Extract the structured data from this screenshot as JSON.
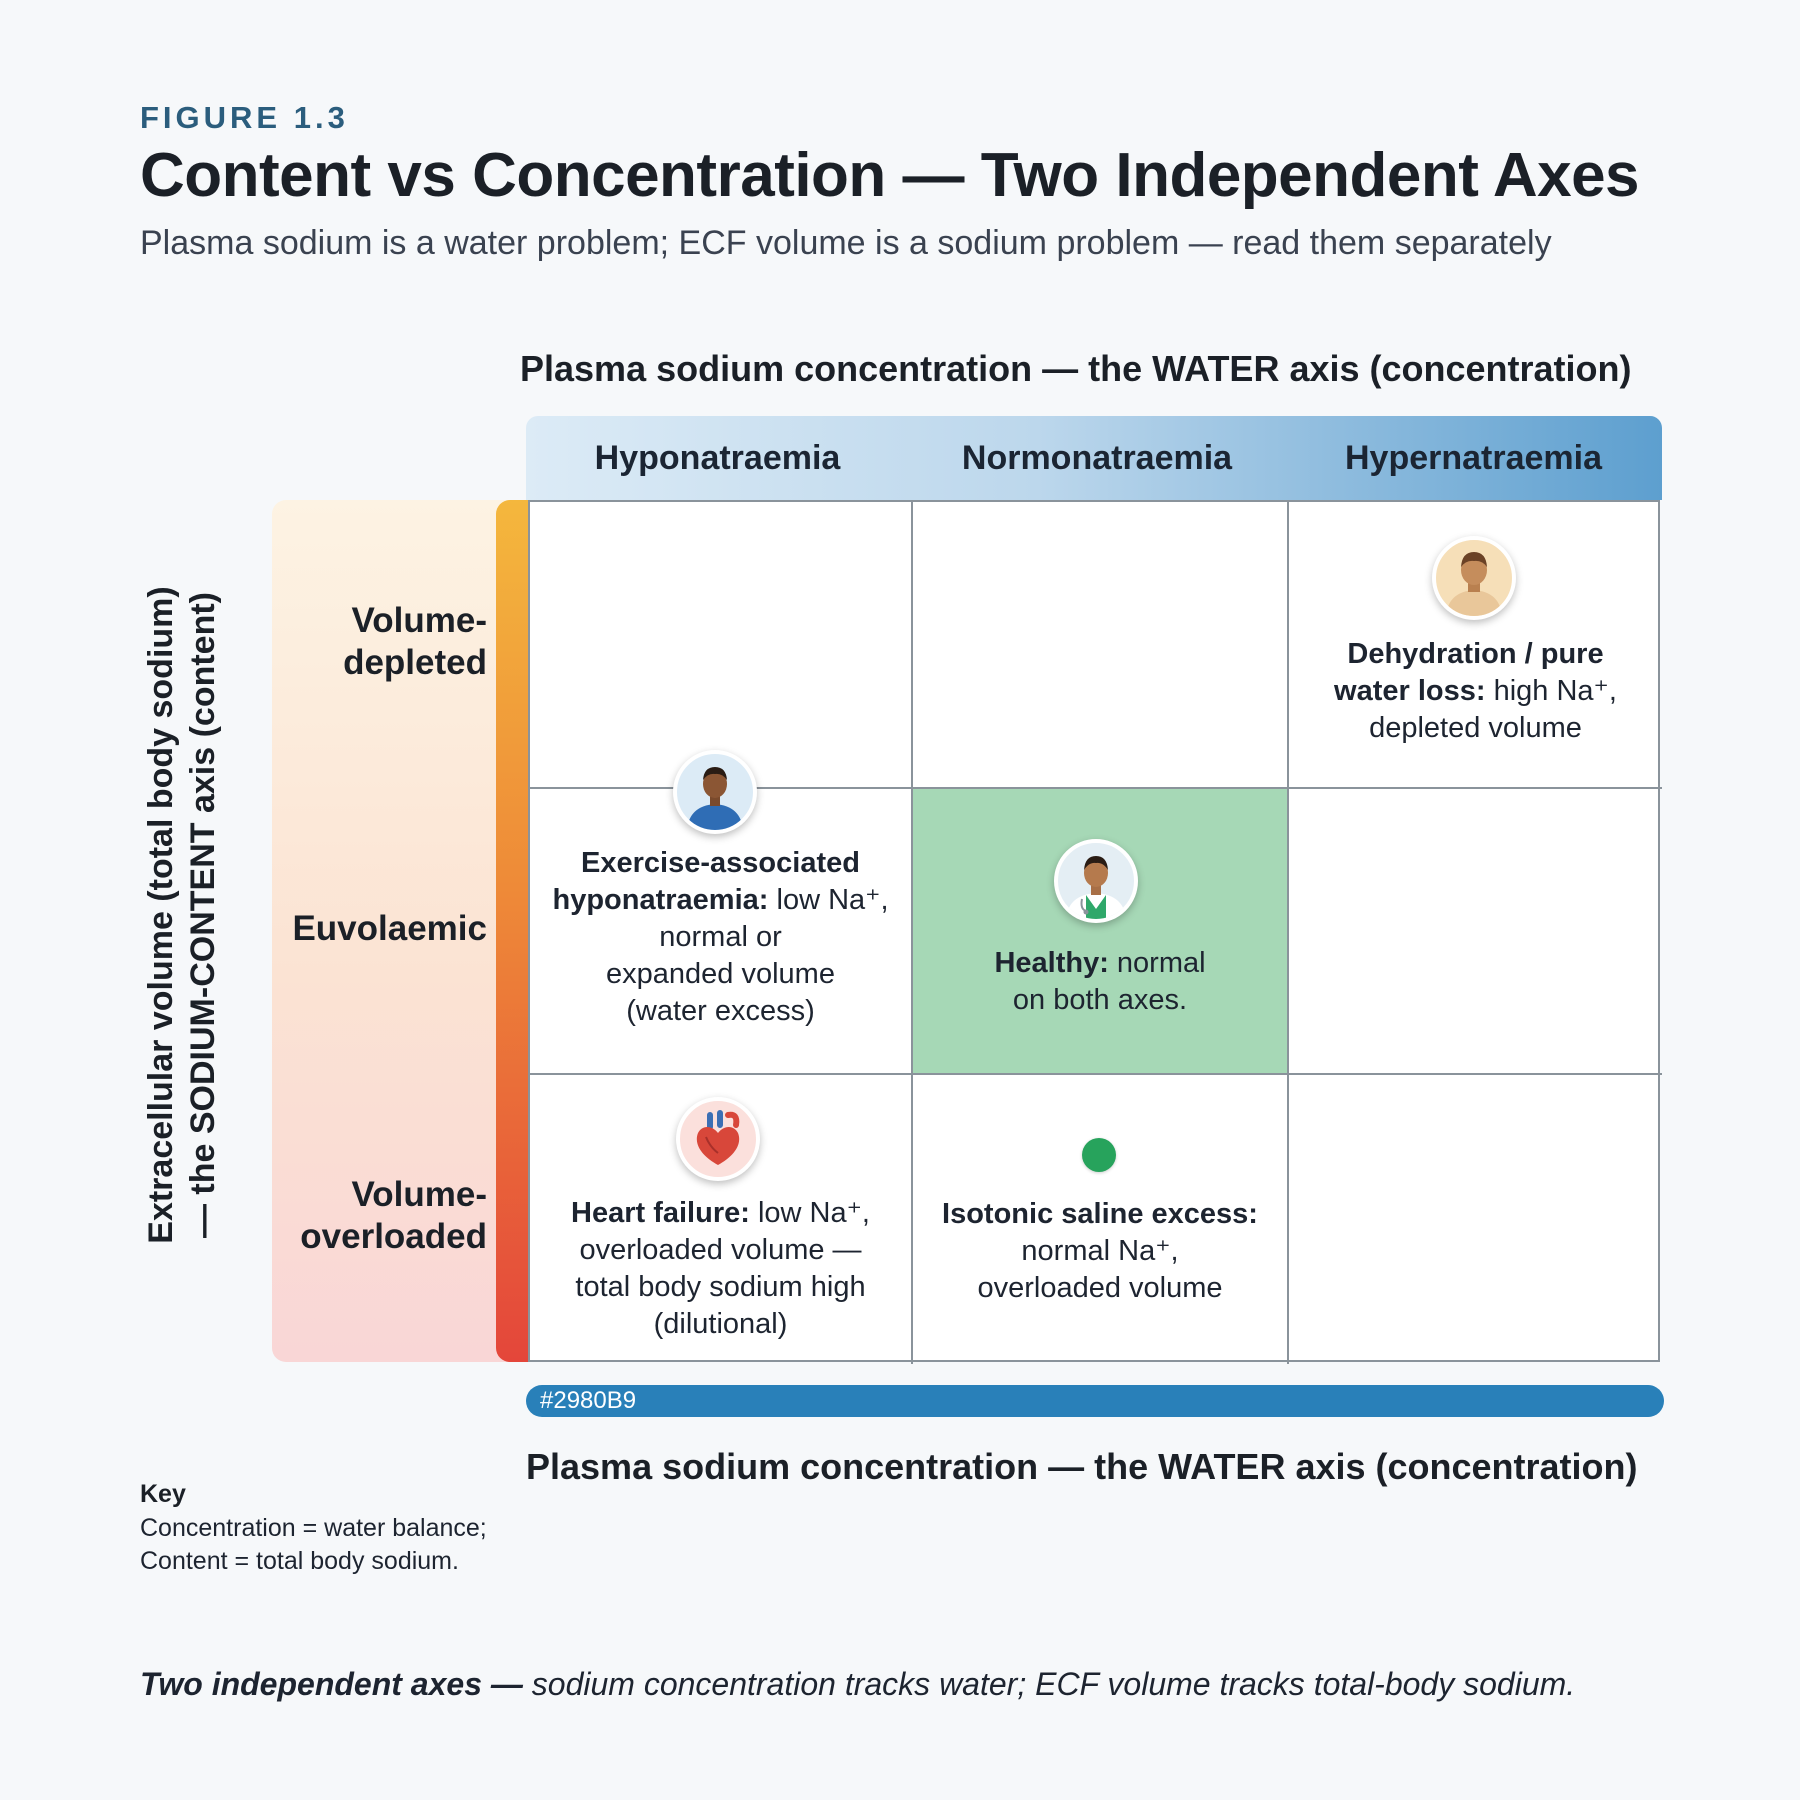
{
  "figure_label": "FIGURE 1.3",
  "title": "Content vs Concentration — Two Independent Axes",
  "subtitle": "Plasma sodium is a water problem; ECF volume is a sodium problem — read them separately",
  "x_axis": {
    "title_top": "Plasma sodium concentration — the WATER axis (concentration)",
    "title_bottom": "Plasma sodium concentration — the WATER axis (concentration)",
    "columns": [
      "Hyponatraemia",
      "Normonatraemia",
      "Hypernatraemia"
    ],
    "bar_color": "#2980B9",
    "bar_label": "#2980B9"
  },
  "y_axis": {
    "title_line1": "Extracellular volume (total body sodium)",
    "title_line2": "— the SODIUM-CONTENT axis (content)",
    "rows": [
      {
        "line1": "Volume-",
        "line2": "depleted"
      },
      {
        "line1": "Euvolaemic",
        "line2": ""
      },
      {
        "line1": "Volume-",
        "line2": "overloaded"
      }
    ],
    "stripe_colors": [
      "#f4b73d",
      "#ee8a38",
      "#e4463a"
    ]
  },
  "cells": {
    "dehydration": {
      "icon": "person-avatar-icon",
      "bold1": "Dehydration / pure",
      "bold2": "water loss:",
      "text2": " high Na⁺,",
      "line3": "depleted volume"
    },
    "exercise": {
      "icon": "runner-avatar-icon",
      "bold1": "Exercise-associated",
      "bold2": "hyponatraemia:",
      "text2": " low Na⁺,",
      "line3": "normal or",
      "line4": "expanded volume",
      "line5": "(water excess)"
    },
    "healthy": {
      "icon": "doctor-avatar-icon",
      "bold1": "Healthy:",
      "text1": " normal",
      "line2": "on both axes.",
      "highlight_color": "#a6d8b6"
    },
    "heart_failure": {
      "icon": "heart-icon",
      "bold1": "Heart failure:",
      "text1": " low Na⁺,",
      "line2": "overloaded volume —",
      "line3": "total body sodium high",
      "line4": "(dilutional)"
    },
    "isotonic": {
      "icon": "green-dot-icon",
      "bold1": "Isotonic saline excess:",
      "line2": "normal Na⁺,",
      "line3": "overloaded volume"
    }
  },
  "key": {
    "title": "Key",
    "line1": "Concentration = water balance;",
    "line2": "Content = total body sodium."
  },
  "footnote": {
    "bold": "Two independent axes —",
    "text": " sodium concentration tracks water; ECF volume tracks total-body sodium."
  }
}
